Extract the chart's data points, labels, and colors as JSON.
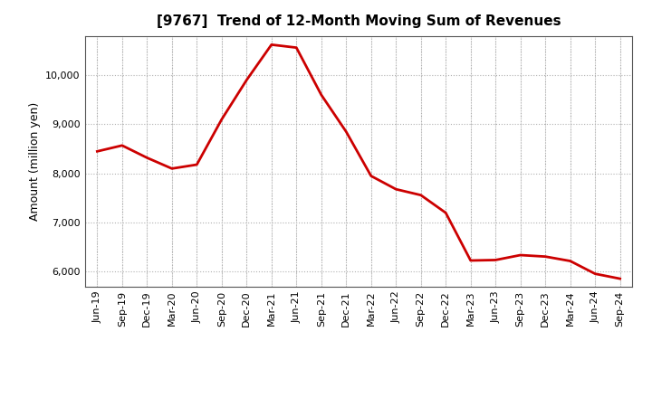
{
  "title": "[9767]  Trend of 12-Month Moving Sum of Revenues",
  "ylabel": "Amount (million yen)",
  "line_color": "#cc0000",
  "line_width": 2.0,
  "background_color": "#ffffff",
  "grid_color": "#b0b0b0",
  "ylim": [
    5700,
    10800
  ],
  "yticks": [
    6000,
    7000,
    8000,
    9000,
    10000
  ],
  "labels": [
    "Jun-19",
    "Sep-19",
    "Dec-19",
    "Mar-20",
    "Jun-20",
    "Sep-20",
    "Dec-20",
    "Mar-21",
    "Jun-21",
    "Sep-21",
    "Dec-21",
    "Mar-22",
    "Jun-22",
    "Sep-22",
    "Dec-22",
    "Mar-23",
    "Jun-23",
    "Sep-23",
    "Dec-23",
    "Mar-24",
    "Jun-24",
    "Sep-24"
  ],
  "values": [
    8450,
    8570,
    8320,
    8100,
    8180,
    9100,
    9900,
    10620,
    10560,
    9600,
    8850,
    7950,
    7680,
    7560,
    7200,
    6230,
    6240,
    6340,
    6310,
    6220,
    5960,
    5860
  ],
  "title_fontsize": 11,
  "ylabel_fontsize": 9,
  "tick_fontsize": 8
}
